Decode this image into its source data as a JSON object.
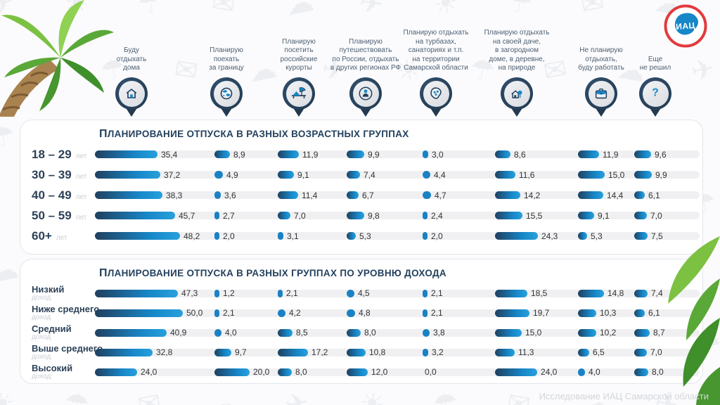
{
  "logo": {
    "text": "ИАЦ"
  },
  "footer": {
    "credit": "Исследование ИАЦ Самарской области"
  },
  "columns": [
    {
      "label": "Буду\nотдыхать\nдома",
      "icon": "home-icon"
    },
    {
      "label": "Планирую\nпоехать\nза границу",
      "icon": "globe-icon"
    },
    {
      "label": "Планирую\nпосетить\nроссийские\nкурорты",
      "icon": "beach-lounger-icon"
    },
    {
      "label": "Планирую\nпутешествовать\nпо России, отдыхать\nв других регионах РФ",
      "icon": "traveler-icon"
    },
    {
      "label": "Планирую отдыхать\nна турбазах,\nсанаториях и т.п.\nна территории\nСамарской области",
      "icon": "region-map-icon"
    },
    {
      "label": "Планирую отдыхать\nна своей даче,\nв загородном\nдоме, в деревне,\nна природе",
      "icon": "country-house-icon"
    },
    {
      "label": "Не планирую\nотдыхать,\nбуду работать",
      "icon": "briefcase-icon"
    },
    {
      "label": "Еще\nне решил",
      "icon": "question-icon"
    }
  ],
  "chart_data": [
    {
      "type": "bar",
      "title": "Планирование отпуска в разных возрастных группах",
      "categories": [
        "Буду отдыхать дома",
        "Планирую поехать за границу",
        "Планирую посетить российские курорты",
        "Планирую путешествовать по России, отдыхать в других регионах РФ",
        "Планирую отдыхать на турбазах, санаториях и т.п. на территории Самарской области",
        "Планирую отдыхать на своей даче, в загородном доме, в деревне, на природе",
        "Не планирую отдыхать, буду работать",
        "Еще не решил"
      ],
      "series": [
        {
          "name": "18 – 29 лет",
          "label": "18 – 29",
          "sublabel": "лет",
          "values": [
            35.4,
            8.9,
            11.9,
            9.9,
            3.0,
            8.6,
            11.9,
            9.6
          ]
        },
        {
          "name": "30 – 39 лет",
          "label": "30 – 39",
          "sublabel": "лет",
          "values": [
            37.2,
            4.9,
            9.1,
            7.4,
            4.4,
            11.6,
            15.0,
            9.9
          ]
        },
        {
          "name": "40 – 49 лет",
          "label": "40 – 49",
          "sublabel": "лет",
          "values": [
            38.3,
            3.6,
            11.4,
            6.7,
            4.7,
            14.2,
            14.4,
            6.1
          ]
        },
        {
          "name": "50 – 59 лет",
          "label": "50 – 59",
          "sublabel": "лет",
          "values": [
            45.7,
            2.7,
            7.0,
            9.8,
            2.4,
            15.5,
            9.1,
            7.0
          ]
        },
        {
          "name": "60+ лет",
          "label": "60+",
          "sublabel": "лет",
          "values": [
            48.2,
            2.0,
            3.1,
            5.3,
            2.0,
            24.3,
            5.3,
            7.5
          ]
        }
      ]
    },
    {
      "type": "bar",
      "title": "Планирование отпуска в разных группах по уровню дохода",
      "categories": [
        "Буду отдыхать дома",
        "Планирую поехать за границу",
        "Планирую посетить российские курорты",
        "Планирую путешествовать по России, отдыхать в других регионах РФ",
        "Планирую отдыхать на турбазах, санаториях и т.п. на территории Самарской области",
        "Планирую отдыхать на своей даче, в загородном доме, в деревне, на природе",
        "Не планирую отдыхать, буду работать",
        "Еще не решил"
      ],
      "series": [
        {
          "name": "Низкий доход",
          "label": "Низкий",
          "sublabel": "доход",
          "values": [
            47.3,
            1.2,
            2.1,
            4.5,
            2.1,
            18.5,
            14.8,
            7.4
          ]
        },
        {
          "name": "Ниже среднего доход",
          "label": "Ниже среднего",
          "sublabel": "доход",
          "values": [
            50.0,
            2.1,
            4.2,
            4.8,
            2.1,
            19.7,
            10.3,
            6.1
          ]
        },
        {
          "name": "Средний доход",
          "label": "Средний",
          "sublabel": "доход",
          "values": [
            40.9,
            4.0,
            8.5,
            8.0,
            3.8,
            15.0,
            10.2,
            8.7
          ]
        },
        {
          "name": "Выше среднего доход",
          "label": "Выше среднего",
          "sublabel": "доход",
          "values": [
            32.8,
            9.7,
            17.2,
            10.8,
            3.2,
            11.3,
            6.5,
            7.0
          ]
        },
        {
          "name": "Высокий доход",
          "label": "Высокий",
          "sublabel": "доход",
          "values": [
            24.0,
            20.0,
            8.0,
            12.0,
            0.0,
            24.0,
            4.0,
            8.0
          ]
        }
      ]
    }
  ],
  "colors": {
    "navy": "#24415e",
    "accent_blue": "#1787c8",
    "bar_gradient_start": "#20405f",
    "bar_gradient_end": "#28a0dc",
    "track": "#f0f0f2",
    "muted_label": "#c9ccd2",
    "logo_ring_red": "#e23b3e"
  },
  "background_pattern_icons": [
    "✈",
    "☀",
    "☂",
    "✉",
    "☁"
  ]
}
